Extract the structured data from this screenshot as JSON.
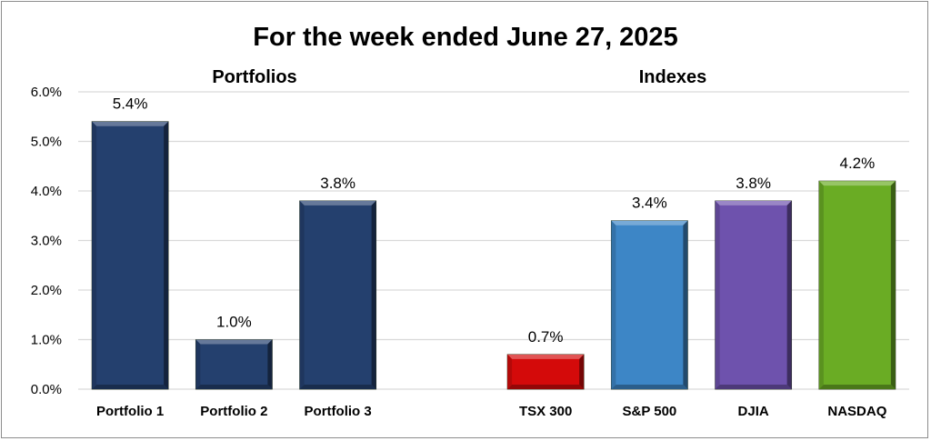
{
  "chart_data": {
    "type": "bar",
    "title": "For the week ended June 27, 2025",
    "group_labels": [
      "Portfolios",
      "Indexes"
    ],
    "categories": [
      "Portfolio 1",
      "Portfolio 2",
      "Portfolio 3",
      "",
      "TSX 300",
      "S&P 500",
      "DJIA",
      "NASDAQ"
    ],
    "values": [
      5.4,
      1.0,
      3.8,
      null,
      0.7,
      3.4,
      3.8,
      4.2
    ],
    "data_labels": [
      "5.4%",
      "1.0%",
      "3.8%",
      "",
      "0.7%",
      "3.4%",
      "3.8%",
      "4.2%"
    ],
    "colors": [
      "#24406e",
      "#24406e",
      "#24406e",
      null,
      "#d40a0a",
      "#3d86c6",
      "#6e52ad",
      "#6aac24"
    ],
    "ylim": [
      0,
      6
    ],
    "yticks": [
      "0.0%",
      "1.0%",
      "2.0%",
      "3.0%",
      "4.0%",
      "5.0%",
      "6.0%"
    ],
    "xlabel": "",
    "ylabel": "",
    "grid": true,
    "legend": "none"
  }
}
